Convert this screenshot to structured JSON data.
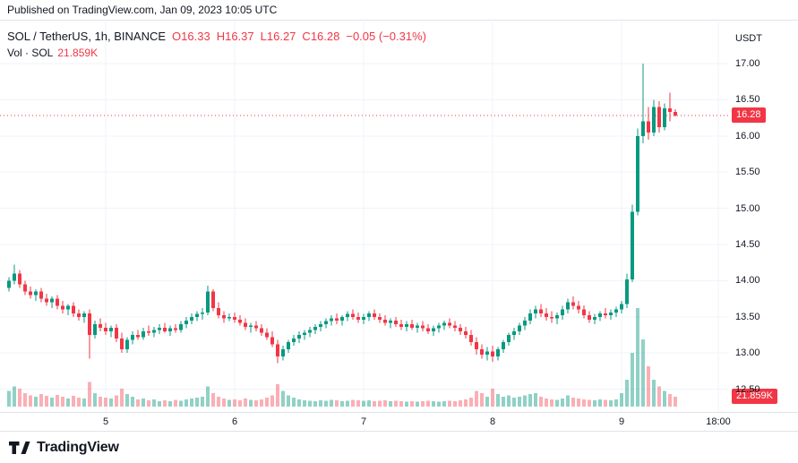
{
  "published_bar": {
    "text": "Published on TradingView.com, Jan 09, 2023 10:05 UTC"
  },
  "legend": {
    "symbol": "SOL / TetherUS, 1h, BINANCE",
    "labels": {
      "open": "O",
      "high": "H",
      "low": "L",
      "close": "C"
    },
    "ohlc": {
      "open": "16.33",
      "high": "16.37",
      "low": "16.27",
      "close": "16.28",
      "change": "−0.05 (−0.31%)"
    },
    "vol_label": "Vol · SOL",
    "vol_value": "21.859K"
  },
  "axis": {
    "currency": "USDT",
    "last_price_label": "16.28",
    "volume_badge": "21.859K"
  },
  "footer": {
    "brand": "TradingView"
  },
  "colors": {
    "up": "#089981",
    "down": "#f23645",
    "vol_up": "rgba(8,153,129,0.45)",
    "vol_down": "rgba(242,54,69,0.40)",
    "grid": "#f0f3fa",
    "badge_bg": "#f23645",
    "text": "#131722"
  },
  "chart_data": {
    "type": "candlestick",
    "title": "SOL / TetherUS, 1h, BINANCE",
    "symbol": "SOL/USDT",
    "interval": "1h",
    "exchange": "BINANCE",
    "last_price": 16.28,
    "ylim": [
      12.35,
      17.35
    ],
    "price_ticks": [
      17.0,
      16.5,
      16.0,
      15.5,
      15.0,
      14.5,
      14.0,
      13.5,
      13.0,
      12.5
    ],
    "time_ticks": [
      {
        "label": "5",
        "index": 18
      },
      {
        "label": "6",
        "index": 42
      },
      {
        "label": "7",
        "index": 66
      },
      {
        "label": "8",
        "index": 90
      },
      {
        "label": "9",
        "index": 114
      },
      {
        "label": "18:00",
        "index": 132
      }
    ],
    "volume_scale_max": 220000,
    "last_volume_label": "21.859K",
    "candles_format": [
      "open",
      "high",
      "low",
      "close",
      "volume"
    ],
    "candles": [
      [
        13.9,
        14.05,
        13.85,
        14.0,
        35000
      ],
      [
        14.0,
        14.22,
        13.95,
        14.1,
        45000
      ],
      [
        14.1,
        14.15,
        13.9,
        13.95,
        40000
      ],
      [
        13.95,
        14.0,
        13.8,
        13.85,
        30000
      ],
      [
        13.85,
        13.92,
        13.75,
        13.8,
        25000
      ],
      [
        13.8,
        13.88,
        13.72,
        13.85,
        22000
      ],
      [
        13.85,
        13.9,
        13.7,
        13.75,
        28000
      ],
      [
        13.75,
        13.82,
        13.65,
        13.7,
        24000
      ],
      [
        13.7,
        13.78,
        13.62,
        13.75,
        20000
      ],
      [
        13.75,
        13.8,
        13.6,
        13.65,
        26000
      ],
      [
        13.65,
        13.72,
        13.55,
        13.6,
        22000
      ],
      [
        13.6,
        13.68,
        13.52,
        13.65,
        18000
      ],
      [
        13.65,
        13.7,
        13.5,
        13.55,
        24000
      ],
      [
        13.55,
        13.6,
        13.45,
        13.5,
        20000
      ],
      [
        13.5,
        13.58,
        13.42,
        13.55,
        18000
      ],
      [
        13.55,
        13.6,
        12.92,
        13.25,
        55000
      ],
      [
        13.25,
        13.45,
        13.2,
        13.4,
        30000
      ],
      [
        13.4,
        13.48,
        13.3,
        13.35,
        22000
      ],
      [
        13.35,
        13.42,
        13.25,
        13.3,
        20000
      ],
      [
        13.3,
        13.38,
        13.22,
        13.35,
        18000
      ],
      [
        13.35,
        13.4,
        13.15,
        13.2,
        25000
      ],
      [
        13.2,
        13.28,
        13.0,
        13.05,
        40000
      ],
      [
        13.05,
        13.22,
        13.0,
        13.18,
        28000
      ],
      [
        13.18,
        13.3,
        13.12,
        13.25,
        22000
      ],
      [
        13.25,
        13.32,
        13.18,
        13.22,
        16000
      ],
      [
        13.22,
        13.35,
        13.18,
        13.3,
        18000
      ],
      [
        13.3,
        13.38,
        13.24,
        13.28,
        14000
      ],
      [
        13.28,
        13.36,
        13.22,
        13.32,
        16000
      ],
      [
        13.32,
        13.4,
        13.26,
        13.35,
        12000
      ],
      [
        13.35,
        13.42,
        13.28,
        13.3,
        14000
      ],
      [
        13.3,
        13.38,
        13.24,
        13.34,
        12000
      ],
      [
        13.34,
        13.4,
        13.28,
        13.32,
        15000
      ],
      [
        13.32,
        13.44,
        13.28,
        13.4,
        13000
      ],
      [
        13.4,
        13.5,
        13.34,
        13.45,
        16000
      ],
      [
        13.45,
        13.55,
        13.4,
        13.5,
        18000
      ],
      [
        13.5,
        13.58,
        13.44,
        13.54,
        20000
      ],
      [
        13.54,
        13.62,
        13.46,
        13.56,
        22000
      ],
      [
        13.56,
        13.93,
        13.52,
        13.85,
        45000
      ],
      [
        13.85,
        13.88,
        13.58,
        13.62,
        30000
      ],
      [
        13.62,
        13.7,
        13.48,
        13.52,
        22000
      ],
      [
        13.52,
        13.58,
        13.42,
        13.48,
        18000
      ],
      [
        13.48,
        13.55,
        13.44,
        13.5,
        15000
      ],
      [
        13.5,
        13.56,
        13.42,
        13.46,
        16000
      ],
      [
        13.46,
        13.52,
        13.38,
        13.42,
        14000
      ],
      [
        13.42,
        13.48,
        13.32,
        13.36,
        18000
      ],
      [
        13.36,
        13.42,
        13.28,
        13.38,
        15000
      ],
      [
        13.38,
        13.44,
        13.3,
        13.34,
        14000
      ],
      [
        13.34,
        13.4,
        13.24,
        13.28,
        16000
      ],
      [
        13.28,
        13.34,
        13.18,
        13.22,
        20000
      ],
      [
        13.22,
        13.3,
        13.08,
        13.12,
        25000
      ],
      [
        13.12,
        13.18,
        12.86,
        12.95,
        50000
      ],
      [
        12.95,
        13.1,
        12.9,
        13.05,
        35000
      ],
      [
        13.05,
        13.18,
        13.0,
        13.15,
        25000
      ],
      [
        13.15,
        13.25,
        13.1,
        13.2,
        20000
      ],
      [
        13.2,
        13.3,
        13.14,
        13.25,
        16000
      ],
      [
        13.25,
        13.32,
        13.18,
        13.28,
        14000
      ],
      [
        13.28,
        13.36,
        13.22,
        13.32,
        13000
      ],
      [
        13.32,
        13.4,
        13.26,
        13.36,
        12000
      ],
      [
        13.36,
        13.44,
        13.3,
        13.4,
        14000
      ],
      [
        13.4,
        13.48,
        13.34,
        13.44,
        13000
      ],
      [
        13.44,
        13.52,
        13.38,
        13.48,
        15000
      ],
      [
        13.48,
        13.55,
        13.4,
        13.45,
        14000
      ],
      [
        13.45,
        13.52,
        13.38,
        13.5,
        12000
      ],
      [
        13.5,
        13.58,
        13.44,
        13.54,
        13000
      ],
      [
        13.54,
        13.6,
        13.46,
        13.5,
        15000
      ],
      [
        13.5,
        13.56,
        13.42,
        13.46,
        14000
      ],
      [
        13.46,
        13.54,
        13.4,
        13.5,
        13000
      ],
      [
        13.5,
        13.58,
        13.44,
        13.55,
        14000
      ],
      [
        13.55,
        13.6,
        13.46,
        13.5,
        12000
      ],
      [
        13.5,
        13.55,
        13.42,
        13.46,
        13000
      ],
      [
        13.46,
        13.52,
        13.38,
        13.42,
        14000
      ],
      [
        13.42,
        13.48,
        13.34,
        13.45,
        12000
      ],
      [
        13.45,
        13.5,
        13.36,
        13.4,
        13000
      ],
      [
        13.4,
        13.46,
        13.32,
        13.36,
        12000
      ],
      [
        13.36,
        13.44,
        13.3,
        13.4,
        11000
      ],
      [
        13.4,
        13.46,
        13.32,
        13.35,
        12000
      ],
      [
        13.35,
        13.42,
        13.28,
        13.38,
        11000
      ],
      [
        13.38,
        13.44,
        13.3,
        13.34,
        12000
      ],
      [
        13.34,
        13.4,
        13.26,
        13.3,
        13000
      ],
      [
        13.3,
        13.38,
        13.24,
        13.34,
        12000
      ],
      [
        13.34,
        13.42,
        13.28,
        13.38,
        11000
      ],
      [
        13.38,
        13.45,
        13.32,
        13.42,
        12000
      ],
      [
        13.42,
        13.48,
        13.34,
        13.38,
        13000
      ],
      [
        13.38,
        13.44,
        13.3,
        13.35,
        12000
      ],
      [
        13.35,
        13.4,
        13.25,
        13.3,
        14000
      ],
      [
        13.3,
        13.36,
        13.2,
        13.25,
        16000
      ],
      [
        13.25,
        13.32,
        13.1,
        13.15,
        20000
      ],
      [
        13.15,
        13.22,
        12.98,
        13.05,
        35000
      ],
      [
        13.05,
        13.12,
        12.92,
        12.98,
        30000
      ],
      [
        12.98,
        13.08,
        12.9,
        13.02,
        22000
      ],
      [
        13.02,
        13.1,
        12.88,
        12.95,
        40000
      ],
      [
        12.95,
        13.08,
        12.9,
        13.05,
        28000
      ],
      [
        13.05,
        13.18,
        13.0,
        13.15,
        22000
      ],
      [
        13.15,
        13.28,
        13.1,
        13.25,
        25000
      ],
      [
        13.25,
        13.35,
        13.18,
        13.3,
        20000
      ],
      [
        13.3,
        13.42,
        13.25,
        13.38,
        22000
      ],
      [
        13.38,
        13.5,
        13.32,
        13.45,
        25000
      ],
      [
        13.45,
        13.6,
        13.4,
        13.55,
        28000
      ],
      [
        13.55,
        13.65,
        13.48,
        13.6,
        30000
      ],
      [
        13.6,
        13.68,
        13.5,
        13.55,
        22000
      ],
      [
        13.55,
        13.62,
        13.45,
        13.5,
        18000
      ],
      [
        13.5,
        13.58,
        13.42,
        13.48,
        16000
      ],
      [
        13.48,
        13.56,
        13.4,
        13.52,
        15000
      ],
      [
        13.52,
        13.65,
        13.46,
        13.6,
        18000
      ],
      [
        13.6,
        13.75,
        13.55,
        13.7,
        25000
      ],
      [
        13.7,
        13.78,
        13.6,
        13.65,
        20000
      ],
      [
        13.65,
        13.72,
        13.55,
        13.6,
        18000
      ],
      [
        13.6,
        13.66,
        13.48,
        13.52,
        16000
      ],
      [
        13.52,
        13.58,
        13.42,
        13.46,
        15000
      ],
      [
        13.46,
        13.54,
        13.4,
        13.5,
        14000
      ],
      [
        13.5,
        13.58,
        13.44,
        13.55,
        16000
      ],
      [
        13.55,
        13.62,
        13.48,
        13.52,
        15000
      ],
      [
        13.52,
        13.6,
        13.46,
        13.56,
        14000
      ],
      [
        13.56,
        13.64,
        13.5,
        13.6,
        16000
      ],
      [
        13.6,
        13.72,
        13.55,
        13.68,
        30000
      ],
      [
        13.68,
        14.1,
        13.62,
        14.02,
        60000
      ],
      [
        14.02,
        15.05,
        13.98,
        14.95,
        120000
      ],
      [
        14.95,
        16.1,
        14.9,
        16.0,
        220000
      ],
      [
        16.0,
        17.0,
        15.9,
        16.2,
        150000
      ],
      [
        16.2,
        16.4,
        15.95,
        16.05,
        90000
      ],
      [
        16.05,
        16.5,
        16.0,
        16.4,
        60000
      ],
      [
        16.4,
        16.48,
        16.05,
        16.12,
        45000
      ],
      [
        16.12,
        16.45,
        16.08,
        16.38,
        35000
      ],
      [
        16.38,
        16.6,
        16.2,
        16.33,
        28000
      ],
      [
        16.33,
        16.37,
        16.27,
        16.28,
        21859
      ]
    ]
  }
}
